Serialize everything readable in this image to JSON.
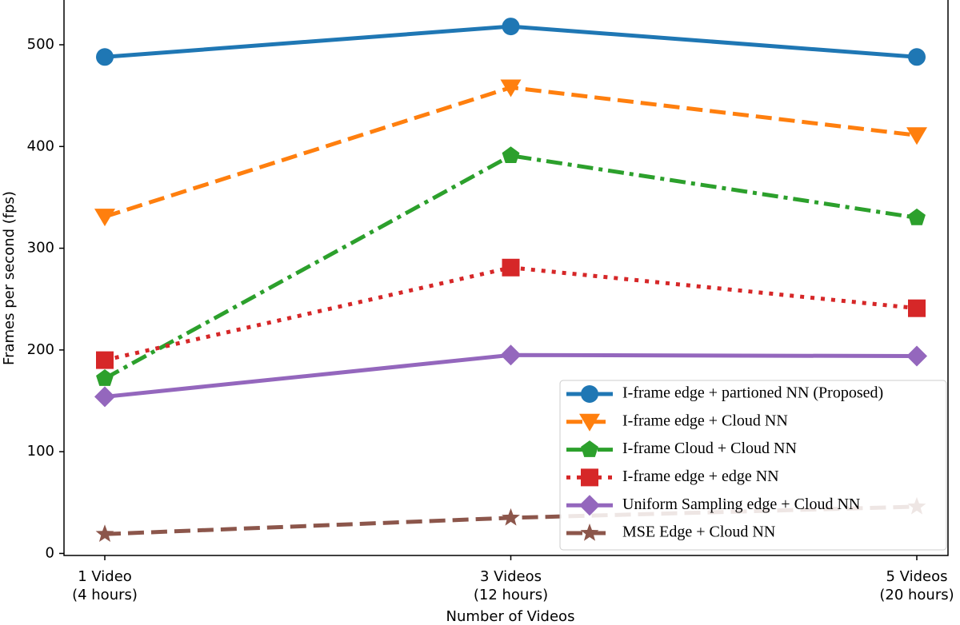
{
  "chart_data": {
    "type": "line",
    "x_label": "Number of Videos",
    "y_label": "Frames per second (fps)",
    "categories": [
      [
        "1 Video",
        "(4 hours)"
      ],
      [
        "3 Videos",
        "(12 hours)"
      ],
      [
        "5 Videos",
        "(20 hours)"
      ]
    ],
    "ylim": [
      -2,
      544
    ],
    "yticks": [
      0,
      100,
      200,
      300,
      400,
      500
    ],
    "legend": "lower right",
    "series": [
      {
        "name": "I-frame edge + partioned NN (Proposed)",
        "color": "#1f77b4",
        "marker": "circle",
        "linestyle": "solid",
        "values": [
          488,
          518,
          488
        ]
      },
      {
        "name": "I-frame edge + Cloud NN",
        "color": "#ff7f0e",
        "marker": "triangle-down",
        "linestyle": "dashed",
        "values": [
          331,
          458,
          411
        ]
      },
      {
        "name": "I-frame Cloud + Cloud NN",
        "color": "#2ca02c",
        "marker": "pentagon",
        "linestyle": "dashdot",
        "values": [
          172,
          391,
          330
        ]
      },
      {
        "name": "I-frame edge + edge NN",
        "color": "#d62728",
        "marker": "square",
        "linestyle": "dotted",
        "values": [
          190,
          281,
          241
        ]
      },
      {
        "name": "Uniform Sampling edge + Cloud NN",
        "color": "#9467bd",
        "marker": "diamond",
        "linestyle": "solid",
        "values": [
          154,
          195,
          194
        ]
      },
      {
        "name": "MSE Edge + Cloud NN",
        "color": "#8c564b",
        "marker": "star",
        "linestyle": "dashed",
        "values": [
          19,
          35,
          46
        ]
      }
    ]
  }
}
